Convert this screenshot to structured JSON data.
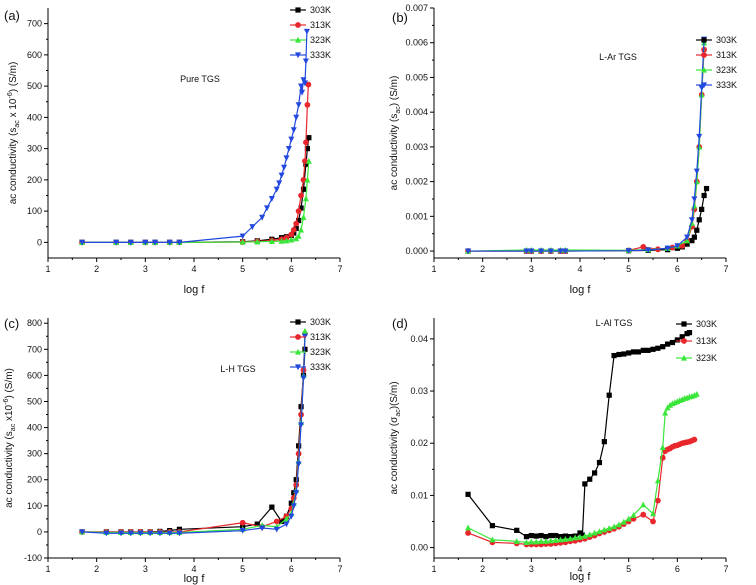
{
  "chart_data": [
    {
      "type": "line",
      "panel_label": "(a)",
      "title": "Pure TGS",
      "xlabel": "log f",
      "ylabel": "ac conductivity (s_ac x 10^-6) (S/m)",
      "ylabel_parts": {
        "pre": "ac conductivity (s",
        "sub1": "ac",
        "mid": " x 10",
        "sup": "-6",
        "post": ") (S/m)"
      },
      "xlim": [
        1,
        7
      ],
      "ylim": [
        -50,
        750
      ],
      "xticks": [
        "1",
        "2",
        "3",
        "4",
        "5",
        "6",
        "7"
      ],
      "yticks": [
        "0",
        "100",
        "200",
        "300",
        "400",
        "500",
        "600",
        "700"
      ],
      "legend": [
        "303K",
        "313K",
        "323K",
        "333K"
      ],
      "series": [
        {
          "name": "303K",
          "color": "#000000",
          "marker": "square",
          "x": [
            1.7,
            2.4,
            2.7,
            3.0,
            3.2,
            3.5,
            3.7,
            5.0,
            5.3,
            5.6,
            5.8,
            5.9,
            6.0,
            6.05,
            6.1,
            6.15,
            6.2,
            6.25,
            6.3,
            6.33,
            6.36
          ],
          "y": [
            0,
            0,
            0,
            0,
            0,
            0,
            0,
            2,
            5,
            10,
            15,
            18,
            22,
            30,
            45,
            70,
            110,
            170,
            250,
            300,
            335
          ]
        },
        {
          "name": "313K",
          "color": "#e8262c",
          "marker": "circle",
          "x": [
            1.7,
            2.4,
            2.7,
            3.0,
            3.2,
            3.5,
            3.7,
            5.0,
            5.3,
            5.6,
            5.8,
            5.9,
            6.0,
            6.05,
            6.1,
            6.15,
            6.2,
            6.25,
            6.28,
            6.3,
            6.33,
            6.35
          ],
          "y": [
            0,
            0,
            0,
            0,
            0,
            0,
            0,
            1,
            3,
            6,
            10,
            15,
            25,
            40,
            60,
            100,
            150,
            200,
            260,
            320,
            440,
            505
          ]
        },
        {
          "name": "323K",
          "color": "#39e639",
          "marker": "triangle-up",
          "x": [
            1.7,
            2.4,
            2.7,
            3.0,
            3.2,
            3.5,
            3.7,
            5.0,
            5.3,
            5.6,
            5.8,
            5.9,
            6.0,
            6.1,
            6.15,
            6.2,
            6.25,
            6.3,
            6.33,
            6.36
          ],
          "y": [
            0,
            0,
            0,
            0,
            0,
            0,
            0,
            1,
            2,
            3,
            4,
            5,
            8,
            12,
            20,
            40,
            80,
            140,
            200,
            260
          ]
        },
        {
          "name": "333K",
          "color": "#2248e0",
          "marker": "triangle-down",
          "x": [
            1.7,
            2.4,
            2.7,
            3.0,
            3.2,
            3.5,
            3.7,
            5.0,
            5.2,
            5.4,
            5.5,
            5.6,
            5.7,
            5.75,
            5.8,
            5.85,
            5.9,
            5.95,
            6.0,
            6.05,
            6.1,
            6.15,
            6.2,
            6.22,
            6.25,
            6.28,
            6.3,
            6.32
          ],
          "y": [
            0,
            0,
            0,
            0,
            0,
            0,
            0,
            20,
            50,
            80,
            110,
            140,
            170,
            190,
            215,
            240,
            270,
            300,
            330,
            360,
            400,
            440,
            500,
            480,
            520,
            510,
            580,
            675
          ]
        }
      ]
    },
    {
      "type": "line",
      "panel_label": "(b)",
      "title": "L-Ar TGS",
      "xlabel": "log f",
      "ylabel": "ac conductivity (s_ac) (S/m)",
      "ylabel_parts": {
        "pre": "ac conductivity (s",
        "sub1": "ac",
        "mid": "",
        "sup": "",
        "post": ") (S/m)"
      },
      "xlim": [
        1,
        7
      ],
      "ylim": [
        -0.0002,
        0.007
      ],
      "xticks": [
        "1",
        "2",
        "3",
        "4",
        "5",
        "6",
        "7"
      ],
      "yticks": [
        "0.000",
        "0.001",
        "0.002",
        "0.003",
        "0.004",
        "0.005",
        "0.006",
        "0.007"
      ],
      "legend": [
        "303K",
        "313K",
        "323K",
        "333K"
      ],
      "series": [
        {
          "name": "303K",
          "color": "#000000",
          "marker": "square",
          "x": [
            1.7,
            2.9,
            3.0,
            3.2,
            3.4,
            3.6,
            3.7,
            5.0,
            5.4,
            5.8,
            6.0,
            6.1,
            6.2,
            6.3,
            6.35,
            6.4,
            6.45,
            6.5,
            6.55,
            6.6
          ],
          "y": [
            0,
            0,
            0,
            0,
            0,
            0,
            0,
            1e-05,
            2e-05,
            4e-05,
            8e-05,
            0.00012,
            0.0002,
            0.0003,
            0.0004,
            0.0006,
            0.0009,
            0.0012,
            0.0016,
            0.0018
          ]
        },
        {
          "name": "313K",
          "color": "#e8262c",
          "marker": "circle",
          "x": [
            1.7,
            2.9,
            3.0,
            3.2,
            3.4,
            3.6,
            3.7,
            5.0,
            5.3,
            5.6,
            5.9,
            6.1,
            6.2,
            6.3,
            6.35,
            6.4,
            6.45,
            6.5,
            6.55
          ],
          "y": [
            0,
            0,
            0,
            0,
            0,
            0,
            0,
            2e-05,
            0.00012,
            5e-05,
            0.0001,
            0.00015,
            0.0003,
            0.0007,
            0.0012,
            0.002,
            0.003,
            0.0045,
            0.0058
          ]
        },
        {
          "name": "323K",
          "color": "#39e639",
          "marker": "triangle-up",
          "x": [
            1.7,
            2.9,
            3.0,
            3.2,
            3.4,
            3.6,
            3.7,
            5.0,
            5.4,
            5.8,
            6.0,
            6.2,
            6.3,
            6.35,
            6.4,
            6.45,
            6.5,
            6.55
          ],
          "y": [
            0,
            3e-05,
            3e-05,
            3e-05,
            3e-05,
            3e-05,
            3e-05,
            2e-05,
            4e-05,
            8e-05,
            0.00015,
            0.0003,
            0.0008,
            0.0013,
            0.002,
            0.003,
            0.0045,
            0.006
          ]
        },
        {
          "name": "333K",
          "color": "#2248e0",
          "marker": "triangle-down",
          "x": [
            1.7,
            2.9,
            3.0,
            3.2,
            3.4,
            3.6,
            3.7,
            5.0,
            5.4,
            5.8,
            6.0,
            6.2,
            6.3,
            6.35,
            6.4,
            6.45,
            6.5,
            6.55
          ],
          "y": [
            0,
            0,
            0,
            0,
            0,
            0,
            0,
            1e-05,
            3e-05,
            8e-05,
            0.00015,
            0.0004,
            0.0009,
            0.0015,
            0.0023,
            0.0033,
            0.0047,
            0.0061
          ]
        }
      ]
    },
    {
      "type": "line",
      "panel_label": "(c)",
      "title": "L-H TGS",
      "xlabel": "log f",
      "ylabel": "ac conductivity (s_ac x10^-6) (S/m)",
      "ylabel_parts": {
        "pre": "ac conductivity (s",
        "sub1": "ac",
        "mid": " x10",
        "sup": "-6",
        "post": ") (S/m)"
      },
      "xlim": [
        1,
        7
      ],
      "ylim": [
        -100,
        820
      ],
      "xticks": [
        "1",
        "2",
        "3",
        "4",
        "5",
        "6",
        "7"
      ],
      "yticks": [
        "-100",
        "0",
        "100",
        "200",
        "300",
        "400",
        "500",
        "600",
        "700",
        "800"
      ],
      "legend": [
        "303K",
        "313K",
        "323K",
        "333K"
      ],
      "series": [
        {
          "name": "303K",
          "color": "#000000",
          "marker": "square",
          "x": [
            1.7,
            2.2,
            2.5,
            2.7,
            2.9,
            3.1,
            3.3,
            3.5,
            3.7,
            5.0,
            5.3,
            5.6,
            5.8,
            5.9,
            6.0,
            6.05,
            6.1,
            6.15,
            6.2,
            6.25,
            6.28
          ],
          "y": [
            0,
            0,
            0,
            0,
            0,
            0,
            2,
            5,
            10,
            20,
            30,
            95,
            40,
            60,
            110,
            150,
            200,
            330,
            480,
            600,
            700
          ]
        },
        {
          "name": "313K",
          "color": "#e8262c",
          "marker": "circle",
          "x": [
            1.7,
            2.2,
            2.5,
            2.7,
            2.9,
            3.1,
            3.3,
            3.5,
            3.7,
            5.0,
            5.4,
            5.7,
            5.9,
            6.0,
            6.05,
            6.1,
            6.15,
            6.2,
            6.25,
            6.28
          ],
          "y": [
            0,
            0,
            0,
            0,
            0,
            0,
            0,
            0,
            0,
            35,
            20,
            40,
            60,
            90,
            130,
            180,
            300,
            450,
            620,
            760
          ]
        },
        {
          "name": "323K",
          "color": "#39e639",
          "marker": "triangle-up",
          "x": [
            1.7,
            2.2,
            2.5,
            2.7,
            2.9,
            3.1,
            3.3,
            3.5,
            3.7,
            5.0,
            5.4,
            5.7,
            5.9,
            6.0,
            6.05,
            6.1,
            6.15,
            6.2,
            6.25,
            6.28
          ],
          "y": [
            0,
            -2,
            -2,
            -2,
            -2,
            -2,
            -2,
            -2,
            -2,
            10,
            25,
            20,
            50,
            70,
            110,
            160,
            270,
            420,
            600,
            770
          ]
        },
        {
          "name": "333K",
          "color": "#2248e0",
          "marker": "triangle-down",
          "x": [
            1.7,
            2.2,
            2.5,
            2.7,
            2.9,
            3.1,
            3.3,
            3.5,
            3.7,
            5.0,
            5.4,
            5.7,
            5.9,
            6.0,
            6.05,
            6.1,
            6.15,
            6.2,
            6.25,
            6.28
          ],
          "y": [
            0,
            -5,
            -5,
            -5,
            -5,
            -5,
            -5,
            -5,
            -5,
            5,
            15,
            10,
            30,
            60,
            100,
            150,
            260,
            410,
            590,
            750
          ]
        }
      ]
    },
    {
      "type": "line",
      "panel_label": "(d)",
      "title": "L-Al TGS",
      "xlabel": "log f",
      "ylabel": "ac conductivity (σ_ac)(S/m)",
      "ylabel_parts": {
        "pre": "ac conductivity (σ",
        "sub1": "ac",
        "mid": "",
        "sup": "",
        "post": ")(S/m)"
      },
      "xlim": [
        1,
        7
      ],
      "ylim": [
        -0.002,
        0.044
      ],
      "xticks": [
        "1",
        "2",
        "3",
        "4",
        "5",
        "6",
        "7"
      ],
      "yticks": [
        "0.00",
        "0.01",
        "0.02",
        "0.03",
        "0.04"
      ],
      "legend": [
        "303K",
        "313K",
        "323K"
      ],
      "series": [
        {
          "name": "303K",
          "color": "#000000",
          "marker": "square",
          "x": [
            1.7,
            2.2,
            2.7,
            2.9,
            3.0,
            3.1,
            3.2,
            3.3,
            3.4,
            3.5,
            3.6,
            3.7,
            3.8,
            3.9,
            4.0,
            4.05,
            4.1,
            4.2,
            4.3,
            4.4,
            4.5,
            4.6,
            4.7,
            4.8,
            4.9,
            5.0,
            5.1,
            5.2,
            5.3,
            5.4,
            5.5,
            5.6,
            5.7,
            5.8,
            5.9,
            6.0,
            6.1,
            6.2,
            6.25
          ],
          "y": [
            0.0102,
            0.0042,
            0.0033,
            0.0021,
            0.0023,
            0.0022,
            0.0023,
            0.0021,
            0.0023,
            0.0023,
            0.0021,
            0.0022,
            0.0021,
            0.0022,
            0.0028,
            0.0024,
            0.0122,
            0.0131,
            0.0143,
            0.0163,
            0.0203,
            0.0292,
            0.0368,
            0.037,
            0.0371,
            0.0373,
            0.0375,
            0.0375,
            0.0378,
            0.0378,
            0.038,
            0.0382,
            0.0385,
            0.039,
            0.0393,
            0.0398,
            0.0404,
            0.041,
            0.0412
          ]
        },
        {
          "name": "313K",
          "color": "#e8262c",
          "marker": "circle",
          "x": [
            1.7,
            2.2,
            2.7,
            2.9,
            3.0,
            3.1,
            3.2,
            3.3,
            3.4,
            3.5,
            3.6,
            3.7,
            3.8,
            3.9,
            4.0,
            4.1,
            4.2,
            4.3,
            4.4,
            4.5,
            4.6,
            4.7,
            4.8,
            4.9,
            5.0,
            5.1,
            5.3,
            5.5,
            5.6,
            5.7,
            5.75,
            5.8,
            5.85,
            5.9,
            5.95,
            6.0,
            6.05,
            6.1,
            6.15,
            6.2,
            6.25,
            6.3,
            6.35
          ],
          "y": [
            0.0028,
            0.001,
            0.0008,
            0.0006,
            0.0006,
            0.0006,
            0.0006,
            0.0007,
            0.0007,
            0.0008,
            0.0009,
            0.001,
            0.0012,
            0.0013,
            0.0015,
            0.0017,
            0.002,
            0.0023,
            0.0027,
            0.003,
            0.0033,
            0.0036,
            0.004,
            0.0045,
            0.005,
            0.0055,
            0.0063,
            0.005,
            0.009,
            0.0172,
            0.0185,
            0.0188,
            0.019,
            0.0193,
            0.0195,
            0.0196,
            0.0198,
            0.02,
            0.0201,
            0.0202,
            0.0203,
            0.0205,
            0.0207
          ]
        },
        {
          "name": "323K",
          "color": "#39e639",
          "marker": "triangle-up",
          "x": [
            1.7,
            2.2,
            2.7,
            2.9,
            3.0,
            3.1,
            3.2,
            3.3,
            3.4,
            3.5,
            3.6,
            3.7,
            3.8,
            3.9,
            4.0,
            4.1,
            4.2,
            4.3,
            4.4,
            4.5,
            4.6,
            4.7,
            4.8,
            4.9,
            5.0,
            5.1,
            5.3,
            5.5,
            5.6,
            5.7,
            5.75,
            5.8,
            5.85,
            5.9,
            5.95,
            6.0,
            6.05,
            6.1,
            6.15,
            6.2,
            6.25,
            6.3,
            6.35,
            6.4
          ],
          "y": [
            0.0038,
            0.0015,
            0.0012,
            0.001,
            0.0011,
            0.0011,
            0.0012,
            0.0012,
            0.0013,
            0.0014,
            0.0015,
            0.0016,
            0.0017,
            0.0019,
            0.002,
            0.0022,
            0.0025,
            0.0028,
            0.0031,
            0.0034,
            0.0037,
            0.004,
            0.0044,
            0.0049,
            0.0055,
            0.0062,
            0.0082,
            0.0065,
            0.0128,
            0.0192,
            0.0258,
            0.0268,
            0.0273,
            0.0276,
            0.0278,
            0.028,
            0.0282,
            0.0284,
            0.0286,
            0.0287,
            0.0289,
            0.029,
            0.0292,
            0.0294
          ]
        }
      ]
    }
  ]
}
